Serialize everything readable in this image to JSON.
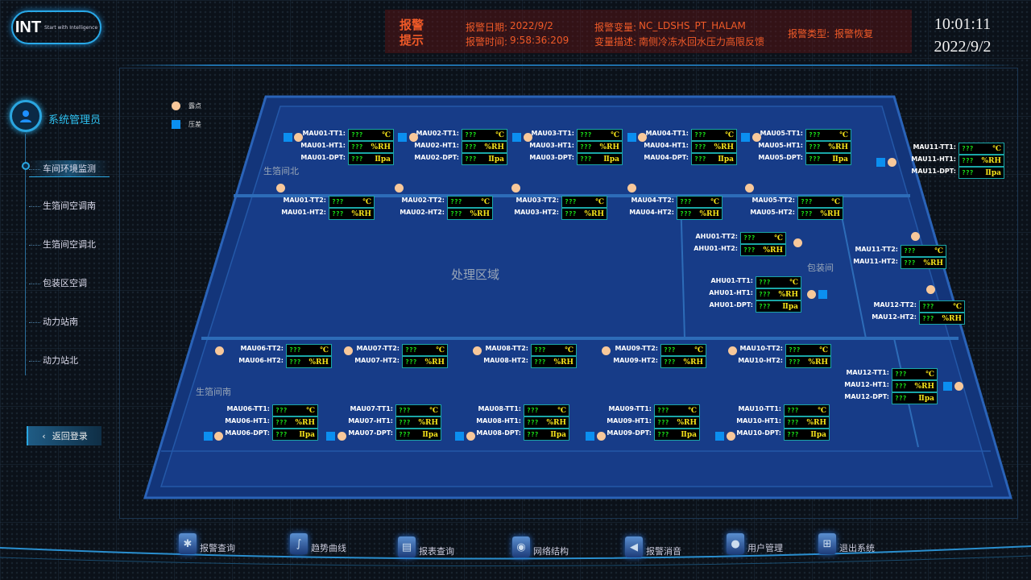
{
  "header": {
    "logo": "INT",
    "logo_tagline": "Start with Intelligence",
    "alarm": {
      "title": "报警提示",
      "date_label": "报警日期:",
      "date": "2022/9/2",
      "time_label": "报警时间:",
      "time": "9:58:36:209",
      "var_label": "报警变量:",
      "var": "NC_LDSHS_PT_HALAM",
      "desc_label": "变量描述:",
      "desc": "南侧冷冻水回水压力高限反馈",
      "type_label": "报警类型:",
      "type": "报警恢复",
      "color": "#f05a28"
    },
    "clock": {
      "time": "10:01:11",
      "date": "2022/9/2"
    }
  },
  "sidebar": {
    "user": "系统管理员",
    "items": [
      {
        "label": "车间环境监测",
        "active": true
      },
      {
        "label": "生箔间空调南"
      },
      {
        "label": "生箔间空调北"
      },
      {
        "label": "包装区空调"
      },
      {
        "label": "动力站南"
      },
      {
        "label": "动力站北"
      }
    ],
    "back": "返回登录"
  },
  "legend": [
    {
      "label": "露点",
      "icon": "circle",
      "color": "#f8c89a"
    },
    {
      "label": "压差",
      "icon": "square",
      "color": "#0b8ff0"
    }
  ],
  "areas": [
    "生箔间北",
    "处理区域",
    "包装间",
    "生箔间南"
  ],
  "units": {
    "TT": "℃",
    "HT": "%RH",
    "DPT": "Ⅱpa"
  },
  "panels": [
    {
      "rows": [
        [
          "MAU01-TT1:",
          "???",
          "℃"
        ],
        [
          "MAU01-HT1:",
          "???",
          "%RH"
        ],
        [
          "MAU01-DPT:",
          "???",
          "Ⅱpa"
        ]
      ]
    },
    {
      "rows": [
        [
          "MAU02-TT1:",
          "???",
          "℃"
        ],
        [
          "MAU02-HT1:",
          "???",
          "%RH"
        ],
        [
          "MAU02-DPT:",
          "???",
          "Ⅱpa"
        ]
      ]
    },
    {
      "rows": [
        [
          "MAU03-TT1:",
          "???",
          "℃"
        ],
        [
          "MAU03-HT1:",
          "???",
          "%RH"
        ],
        [
          "MAU03-DPT:",
          "???",
          "Ⅱpa"
        ]
      ]
    },
    {
      "rows": [
        [
          "MAU04-TT1:",
          "???",
          "℃"
        ],
        [
          "MAU04-HT1:",
          "???",
          "%RH"
        ],
        [
          "MAU04-DPT:",
          "???",
          "Ⅱpa"
        ]
      ]
    },
    {
      "rows": [
        [
          "MAU05-TT1:",
          "???",
          "℃"
        ],
        [
          "MAU05-HT1:",
          "???",
          "%RH"
        ],
        [
          "MAU05-DPT:",
          "???",
          "Ⅱpa"
        ]
      ]
    },
    {
      "rows": [
        [
          "MAU11-TT1:",
          "???",
          "℃"
        ],
        [
          "MAU11-HT1:",
          "???",
          "%RH"
        ],
        [
          "MAU11-DPT:",
          "???",
          "Ⅱpa"
        ]
      ]
    },
    {
      "rows": [
        [
          "MAU01-TT2:",
          "???",
          "℃"
        ],
        [
          "MAU01-HT2:",
          "???",
          "%RH"
        ]
      ]
    },
    {
      "rows": [
        [
          "MAU02-TT2:",
          "???",
          "℃"
        ],
        [
          "MAU02-HT2:",
          "???",
          "%RH"
        ]
      ]
    },
    {
      "rows": [
        [
          "MAU03-TT2:",
          "???",
          "℃"
        ],
        [
          "MAU03-HT2:",
          "???",
          "%RH"
        ]
      ]
    },
    {
      "rows": [
        [
          "MAU04-TT2:",
          "???",
          "℃"
        ],
        [
          "MAU04-HT2:",
          "???",
          "%RH"
        ]
      ]
    },
    {
      "rows": [
        [
          "MAU05-TT2:",
          "???",
          "℃"
        ],
        [
          "MAU05-HT2:",
          "???",
          "%RH"
        ]
      ]
    },
    {
      "rows": [
        [
          "AHU01-TT2:",
          "???",
          "℃"
        ],
        [
          "AHU01-HT2:",
          "???",
          "%RH"
        ]
      ]
    },
    {
      "rows": [
        [
          "MAU11-TT2:",
          "???",
          "℃"
        ],
        [
          "MAU11-HT2:",
          "???",
          "%RH"
        ]
      ]
    },
    {
      "rows": [
        [
          "AHU01-TT1:",
          "???",
          "℃"
        ],
        [
          "AHU01-HT1:",
          "???",
          "%RH"
        ],
        [
          "AHU01-DPT:",
          "???",
          "Ⅱpa"
        ]
      ]
    },
    {
      "rows": [
        [
          "MAU12-TT2:",
          "???",
          "℃"
        ],
        [
          "MAU12-HT2:",
          "???",
          "%RH"
        ]
      ]
    },
    {
      "rows": [
        [
          "MAU06-TT2:",
          "???",
          "℃"
        ],
        [
          "MAU06-HT2:",
          "???",
          "%RH"
        ]
      ]
    },
    {
      "rows": [
        [
          "MAU07-TT2:",
          "???",
          "℃"
        ],
        [
          "MAU07-HT2:",
          "???",
          "%RH"
        ]
      ]
    },
    {
      "rows": [
        [
          "MAU08-TT2:",
          "???",
          "℃"
        ],
        [
          "MAU08-HT2:",
          "???",
          "%RH"
        ]
      ]
    },
    {
      "rows": [
        [
          "MAU09-TT2:",
          "???",
          "℃"
        ],
        [
          "MAU09-HT2:",
          "???",
          "%RH"
        ]
      ]
    },
    {
      "rows": [
        [
          "MAU10-TT2:",
          "???",
          "℃"
        ],
        [
          "MAU10-HT2:",
          "???",
          "%RH"
        ]
      ]
    },
    {
      "rows": [
        [
          "MAU12-TT1:",
          "???",
          "℃"
        ],
        [
          "MAU12-HT1:",
          "???",
          "%RH"
        ],
        [
          "MAU12-DPT:",
          "???",
          "Ⅱpa"
        ]
      ]
    },
    {
      "rows": [
        [
          "MAU06-TT1:",
          "???",
          "℃"
        ],
        [
          "MAU06-HT1:",
          "???",
          "%RH"
        ],
        [
          "MAU06-DPT:",
          "???",
          "Ⅱpa"
        ]
      ]
    },
    {
      "rows": [
        [
          "MAU07-TT1:",
          "???",
          "℃"
        ],
        [
          "MAU07-HT1:",
          "???",
          "%RH"
        ],
        [
          "MAU07-DPT:",
          "???",
          "Ⅱpa"
        ]
      ]
    },
    {
      "rows": [
        [
          "MAU08-TT1:",
          "???",
          "℃"
        ],
        [
          "MAU08-HT1:",
          "???",
          "%RH"
        ],
        [
          "MAU08-DPT:",
          "???",
          "Ⅱpa"
        ]
      ]
    },
    {
      "rows": [
        [
          "MAU09-TT1:",
          "???",
          "℃"
        ],
        [
          "MAU09-HT1:",
          "???",
          "%RH"
        ],
        [
          "MAU09-DPT:",
          "???",
          "Ⅱpa"
        ]
      ]
    },
    {
      "rows": [
        [
          "MAU10-TT1:",
          "???",
          "℃"
        ],
        [
          "MAU10-HT1:",
          "???",
          "%RH"
        ],
        [
          "MAU10-DPT:",
          "???",
          "Ⅱpa"
        ]
      ]
    }
  ],
  "footer": [
    {
      "label": "报警查询",
      "icon": "alarm-light-icon"
    },
    {
      "label": "趋势曲线",
      "icon": "trend-curve-icon"
    },
    {
      "label": "报表查询",
      "icon": "printer-icon"
    },
    {
      "label": "网络结构",
      "icon": "network-icon"
    },
    {
      "label": "报警消音",
      "icon": "speaker-mute-icon"
    },
    {
      "label": "用户管理",
      "icon": "user-icon"
    },
    {
      "label": "退出系统",
      "icon": "exit-icon"
    }
  ]
}
